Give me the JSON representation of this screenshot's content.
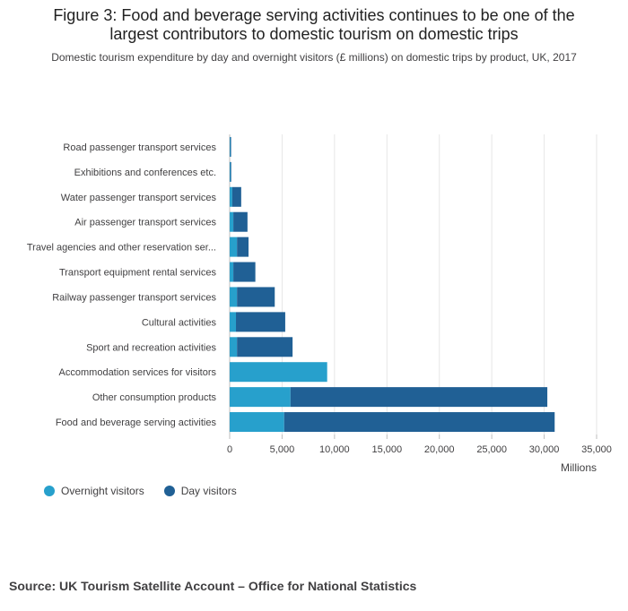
{
  "header": {
    "title_line1": "Figure 3: Food and beverage serving activities continues to be one of the",
    "title_line2": "largest contributors to domestic tourism on domestic trips",
    "subtitle": "Domestic tourism expenditure by day and overnight visitors (£ millions) on domestic trips by product, UK, 2017"
  },
  "footer": {
    "source": "Source: UK Tourism Satellite Account – Office for National Statistics"
  },
  "colors": {
    "overnight": "#27a0cc",
    "day": "#206095",
    "grid": "#e6e6e6",
    "axis": "#bebebe"
  },
  "chart_data": {
    "type": "bar",
    "orientation": "horizontal",
    "stacked": true,
    "categories": [
      "Road passenger transport services",
      "Exhibitions and conferences etc.",
      "Water passenger transport services",
      "Air passenger transport services",
      "Travel agencies and other reservation ser...",
      "Transport equipment rental services",
      "Railway passenger transport services",
      "Cultural activities",
      "Sport and recreation activities",
      "Accommodation services for visitors",
      "Other consumption products",
      "Food and beverage serving activities"
    ],
    "series": [
      {
        "name": "Overnight visitors",
        "values": [
          50,
          60,
          250,
          350,
          700,
          350,
          700,
          600,
          700,
          9300,
          5800,
          5200
        ]
      },
      {
        "name": "Day visitors",
        "values": [
          50,
          80,
          850,
          1350,
          1100,
          2100,
          3600,
          4700,
          5300,
          0,
          24500,
          25800
        ]
      }
    ],
    "xlabel": "Millions",
    "xlim": [
      0,
      35000
    ],
    "xticks": [
      0,
      5000,
      10000,
      15000,
      20000,
      25000,
      30000,
      35000
    ],
    "xtick_labels": [
      "0",
      "5,000",
      "10,000",
      "15,000",
      "20,000",
      "25,000",
      "30,000",
      "35,000"
    ],
    "grid": true,
    "legend": "bottom-left"
  }
}
